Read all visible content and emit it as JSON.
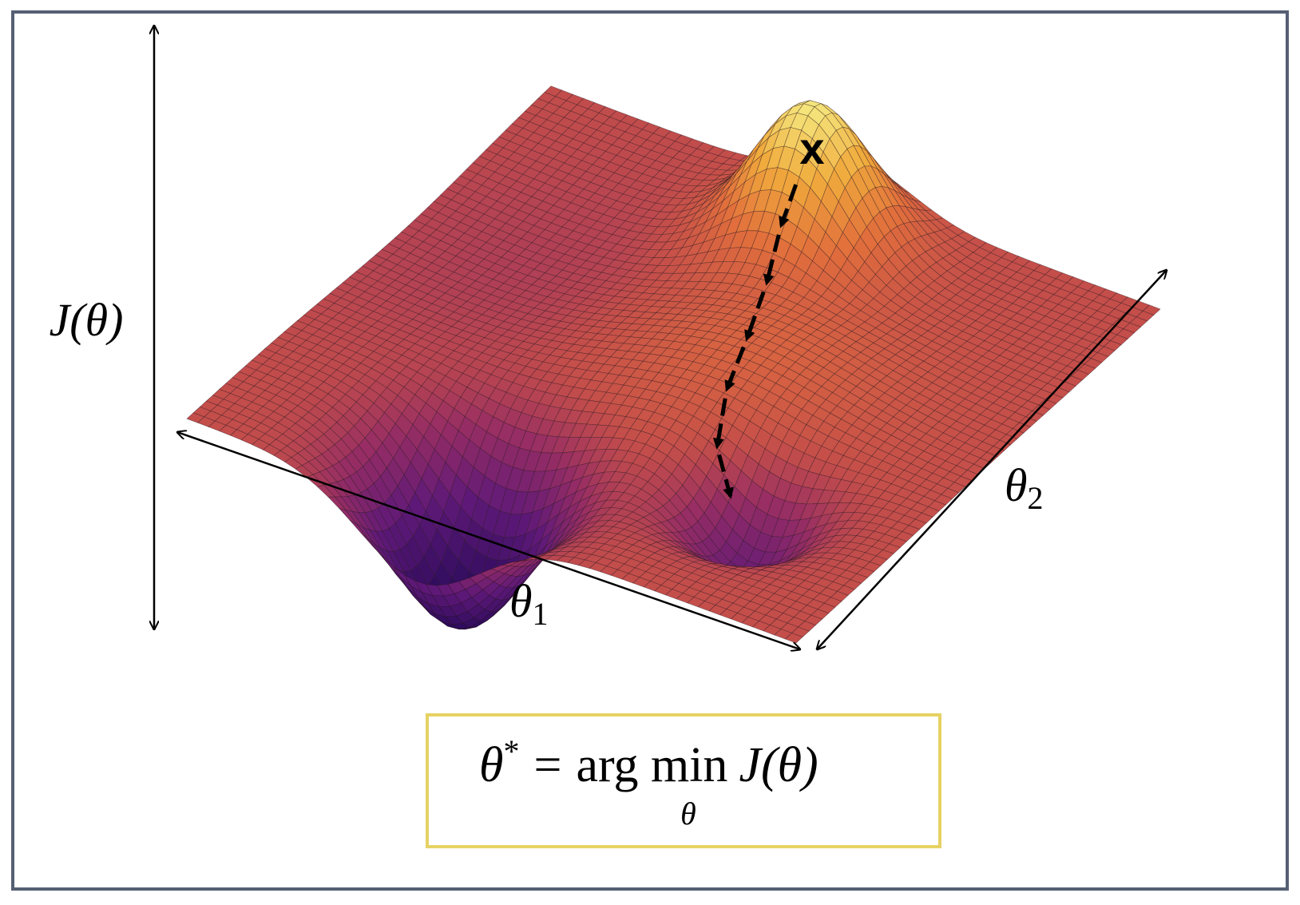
{
  "axes": {
    "vertical": "J(θ)",
    "theta1": {
      "symbol": "θ",
      "subscript": "1"
    },
    "theta2": {
      "symbol": "θ",
      "subscript": "2"
    }
  },
  "start_marker": "x",
  "formula": {
    "lhs": "θ",
    "sup": "*",
    "equals": "=",
    "operator": "arg min",
    "under": "θ",
    "rhs": "J(θ)"
  }
}
